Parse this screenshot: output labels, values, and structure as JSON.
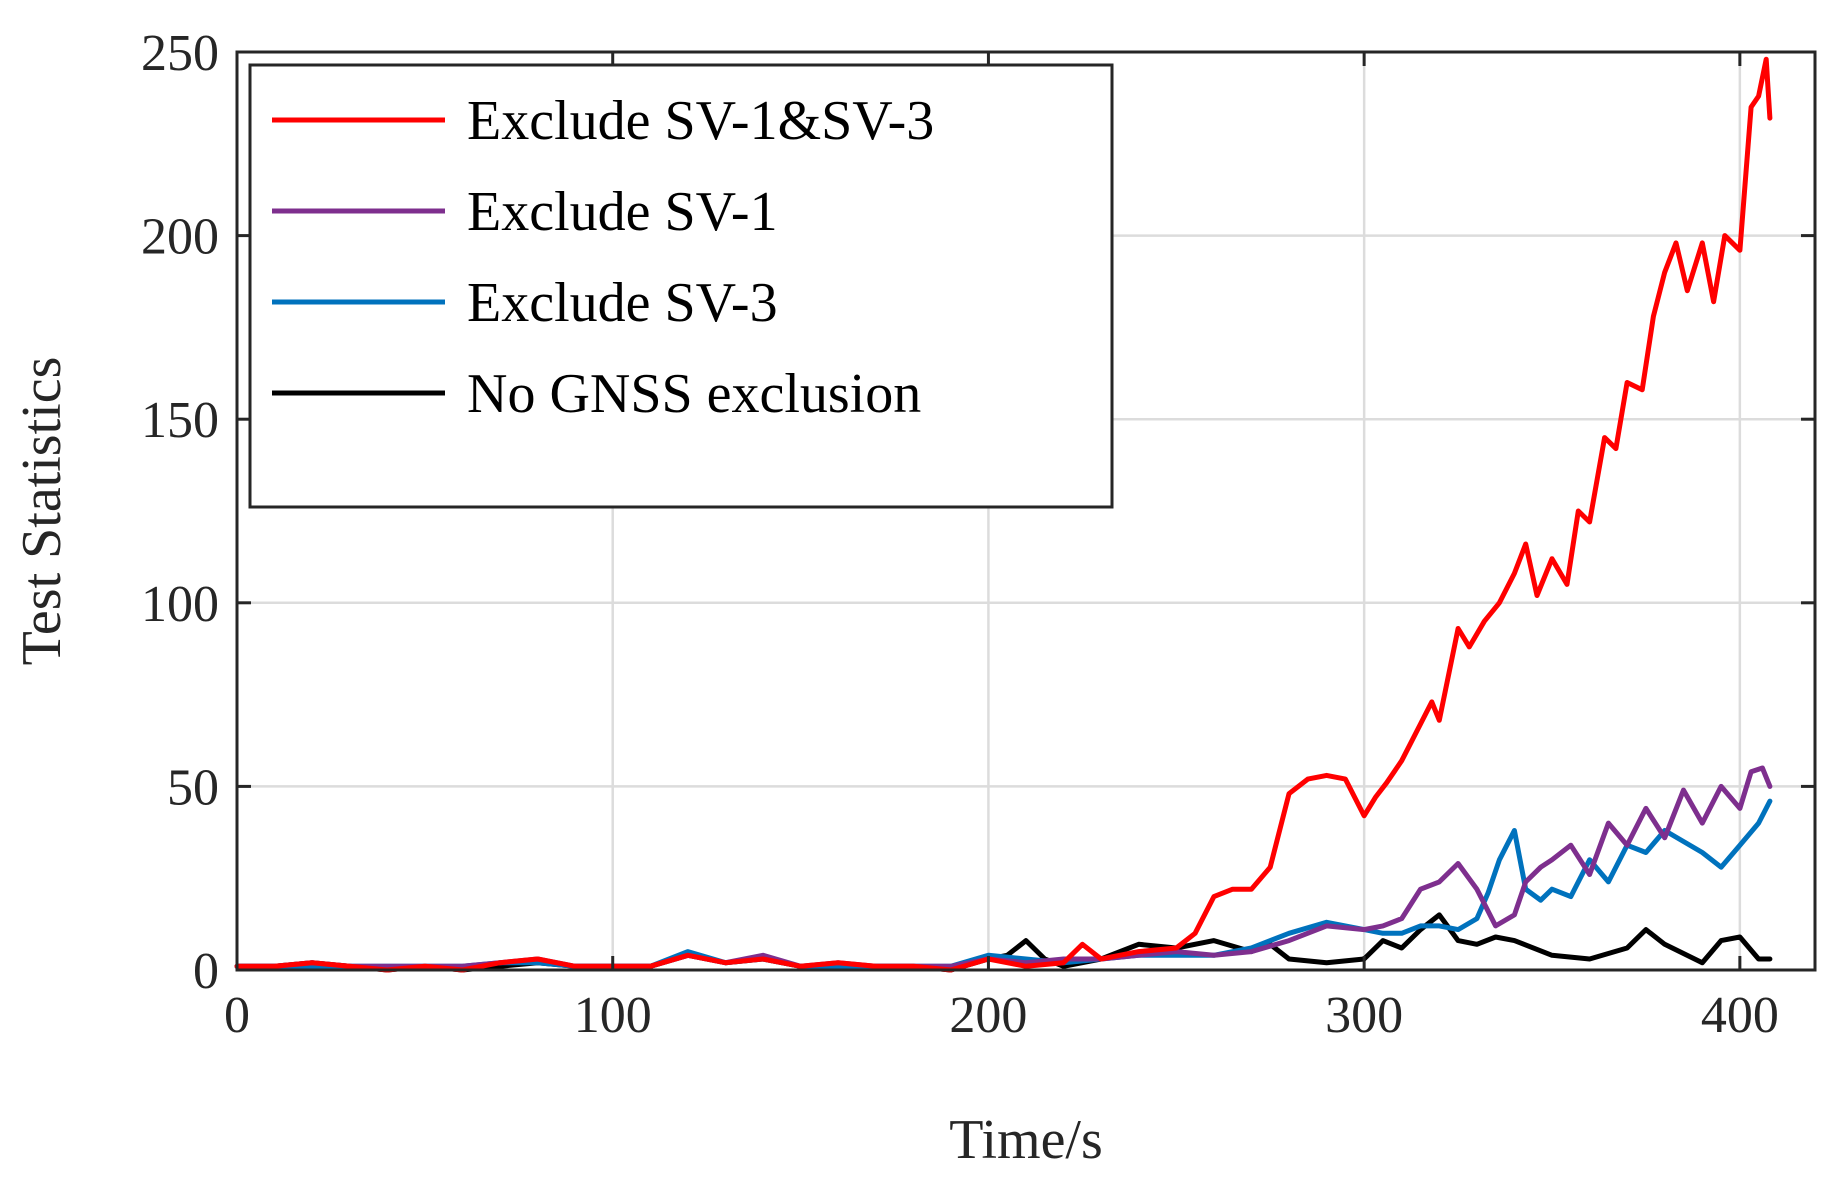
{
  "chart_data": {
    "type": "line",
    "title": "",
    "xlabel": "Time/s",
    "ylabel": "Test Statistics",
    "xlim": [
      0,
      420
    ],
    "ylim": [
      0,
      250
    ],
    "xticks": [
      0,
      100,
      200,
      300,
      400
    ],
    "yticks": [
      0,
      50,
      100,
      150,
      200,
      250
    ],
    "xtick_labels": [
      "0",
      "100",
      "200",
      "300",
      "400"
    ],
    "ytick_labels": [
      "0",
      "50",
      "100",
      "150",
      "200",
      "250"
    ],
    "grid": true,
    "legend_position": "top-left",
    "series": [
      {
        "name": "Exclude SV-1&SV-3",
        "color": "#ff0000",
        "x": [
          0,
          10,
          20,
          30,
          40,
          50,
          60,
          70,
          80,
          90,
          100,
          110,
          120,
          130,
          140,
          150,
          160,
          170,
          180,
          190,
          200,
          210,
          220,
          225,
          230,
          240,
          250,
          255,
          260,
          265,
          270,
          275,
          280,
          285,
          290,
          295,
          300,
          303,
          306,
          310,
          315,
          318,
          320,
          325,
          328,
          332,
          336,
          340,
          343,
          346,
          350,
          354,
          357,
          360,
          364,
          367,
          370,
          374,
          377,
          380,
          383,
          386,
          390,
          393,
          396,
          400,
          403,
          405,
          407,
          408
        ],
        "y": [
          1,
          1,
          2,
          1,
          0,
          1,
          0,
          2,
          3,
          1,
          1,
          1,
          4,
          2,
          3,
          1,
          2,
          1,
          1,
          0,
          3,
          1,
          2,
          7,
          3,
          5,
          6,
          10,
          20,
          22,
          22,
          28,
          48,
          52,
          53,
          52,
          42,
          47,
          51,
          57,
          67,
          73,
          68,
          93,
          88,
          95,
          100,
          108,
          116,
          102,
          112,
          105,
          125,
          122,
          145,
          142,
          160,
          158,
          178,
          190,
          198,
          185,
          198,
          182,
          200,
          196,
          235,
          238,
          248,
          232
        ]
      },
      {
        "name": "Exclude SV-1",
        "color": "#7e2f8e",
        "x": [
          0,
          10,
          20,
          30,
          40,
          50,
          60,
          70,
          80,
          90,
          100,
          110,
          120,
          130,
          140,
          150,
          160,
          170,
          180,
          190,
          200,
          210,
          220,
          230,
          240,
          250,
          260,
          270,
          280,
          290,
          300,
          305,
          310,
          315,
          320,
          325,
          330,
          335,
          340,
          343,
          347,
          350,
          355,
          360,
          365,
          370,
          375,
          380,
          385,
          390,
          395,
          400,
          403,
          406,
          408
        ],
        "y": [
          1,
          1,
          2,
          1,
          1,
          1,
          1,
          2,
          3,
          1,
          1,
          1,
          4,
          2,
          4,
          1,
          2,
          1,
          1,
          1,
          3,
          2,
          3,
          3,
          4,
          5,
          4,
          5,
          8,
          12,
          11,
          12,
          14,
          22,
          24,
          29,
          22,
          12,
          15,
          24,
          28,
          30,
          34,
          26,
          40,
          34,
          44,
          36,
          49,
          40,
          50,
          44,
          54,
          55,
          50
        ]
      },
      {
        "name": "Exclude SV-3",
        "color": "#0072bd",
        "x": [
          0,
          10,
          20,
          30,
          40,
          50,
          60,
          70,
          80,
          90,
          100,
          110,
          120,
          130,
          140,
          150,
          160,
          170,
          180,
          190,
          200,
          210,
          220,
          230,
          240,
          250,
          260,
          270,
          280,
          290,
          300,
          305,
          310,
          315,
          320,
          325,
          330,
          333,
          336,
          340,
          343,
          347,
          350,
          355,
          360,
          365,
          370,
          375,
          380,
          385,
          390,
          395,
          400,
          405,
          408
        ],
        "y": [
          1,
          1,
          1,
          1,
          1,
          1,
          1,
          2,
          2,
          1,
          1,
          1,
          5,
          2,
          3,
          1,
          1,
          1,
          1,
          1,
          4,
          3,
          2,
          3,
          4,
          4,
          4,
          6,
          10,
          13,
          11,
          10,
          10,
          12,
          12,
          11,
          14,
          21,
          30,
          38,
          22,
          19,
          22,
          20,
          30,
          24,
          34,
          32,
          38,
          35,
          32,
          28,
          34,
          40,
          46
        ]
      },
      {
        "name": "No GNSS exclusion",
        "color": "#000000",
        "x": [
          0,
          10,
          20,
          30,
          40,
          50,
          60,
          70,
          80,
          90,
          100,
          110,
          120,
          130,
          140,
          150,
          160,
          170,
          180,
          190,
          200,
          205,
          210,
          215,
          220,
          230,
          240,
          250,
          260,
          270,
          275,
          280,
          290,
          300,
          305,
          310,
          315,
          320,
          325,
          330,
          335,
          340,
          350,
          360,
          370,
          375,
          380,
          390,
          395,
          400,
          405,
          408
        ],
        "y": [
          1,
          1,
          2,
          1,
          0,
          1,
          0,
          1,
          2,
          1,
          1,
          1,
          4,
          2,
          3,
          1,
          1,
          1,
          1,
          0,
          3,
          4,
          8,
          3,
          1,
          3,
          7,
          6,
          8,
          5,
          7,
          3,
          2,
          3,
          8,
          6,
          11,
          15,
          8,
          7,
          9,
          8,
          4,
          3,
          6,
          11,
          7,
          2,
          8,
          9,
          3,
          3
        ]
      }
    ]
  }
}
